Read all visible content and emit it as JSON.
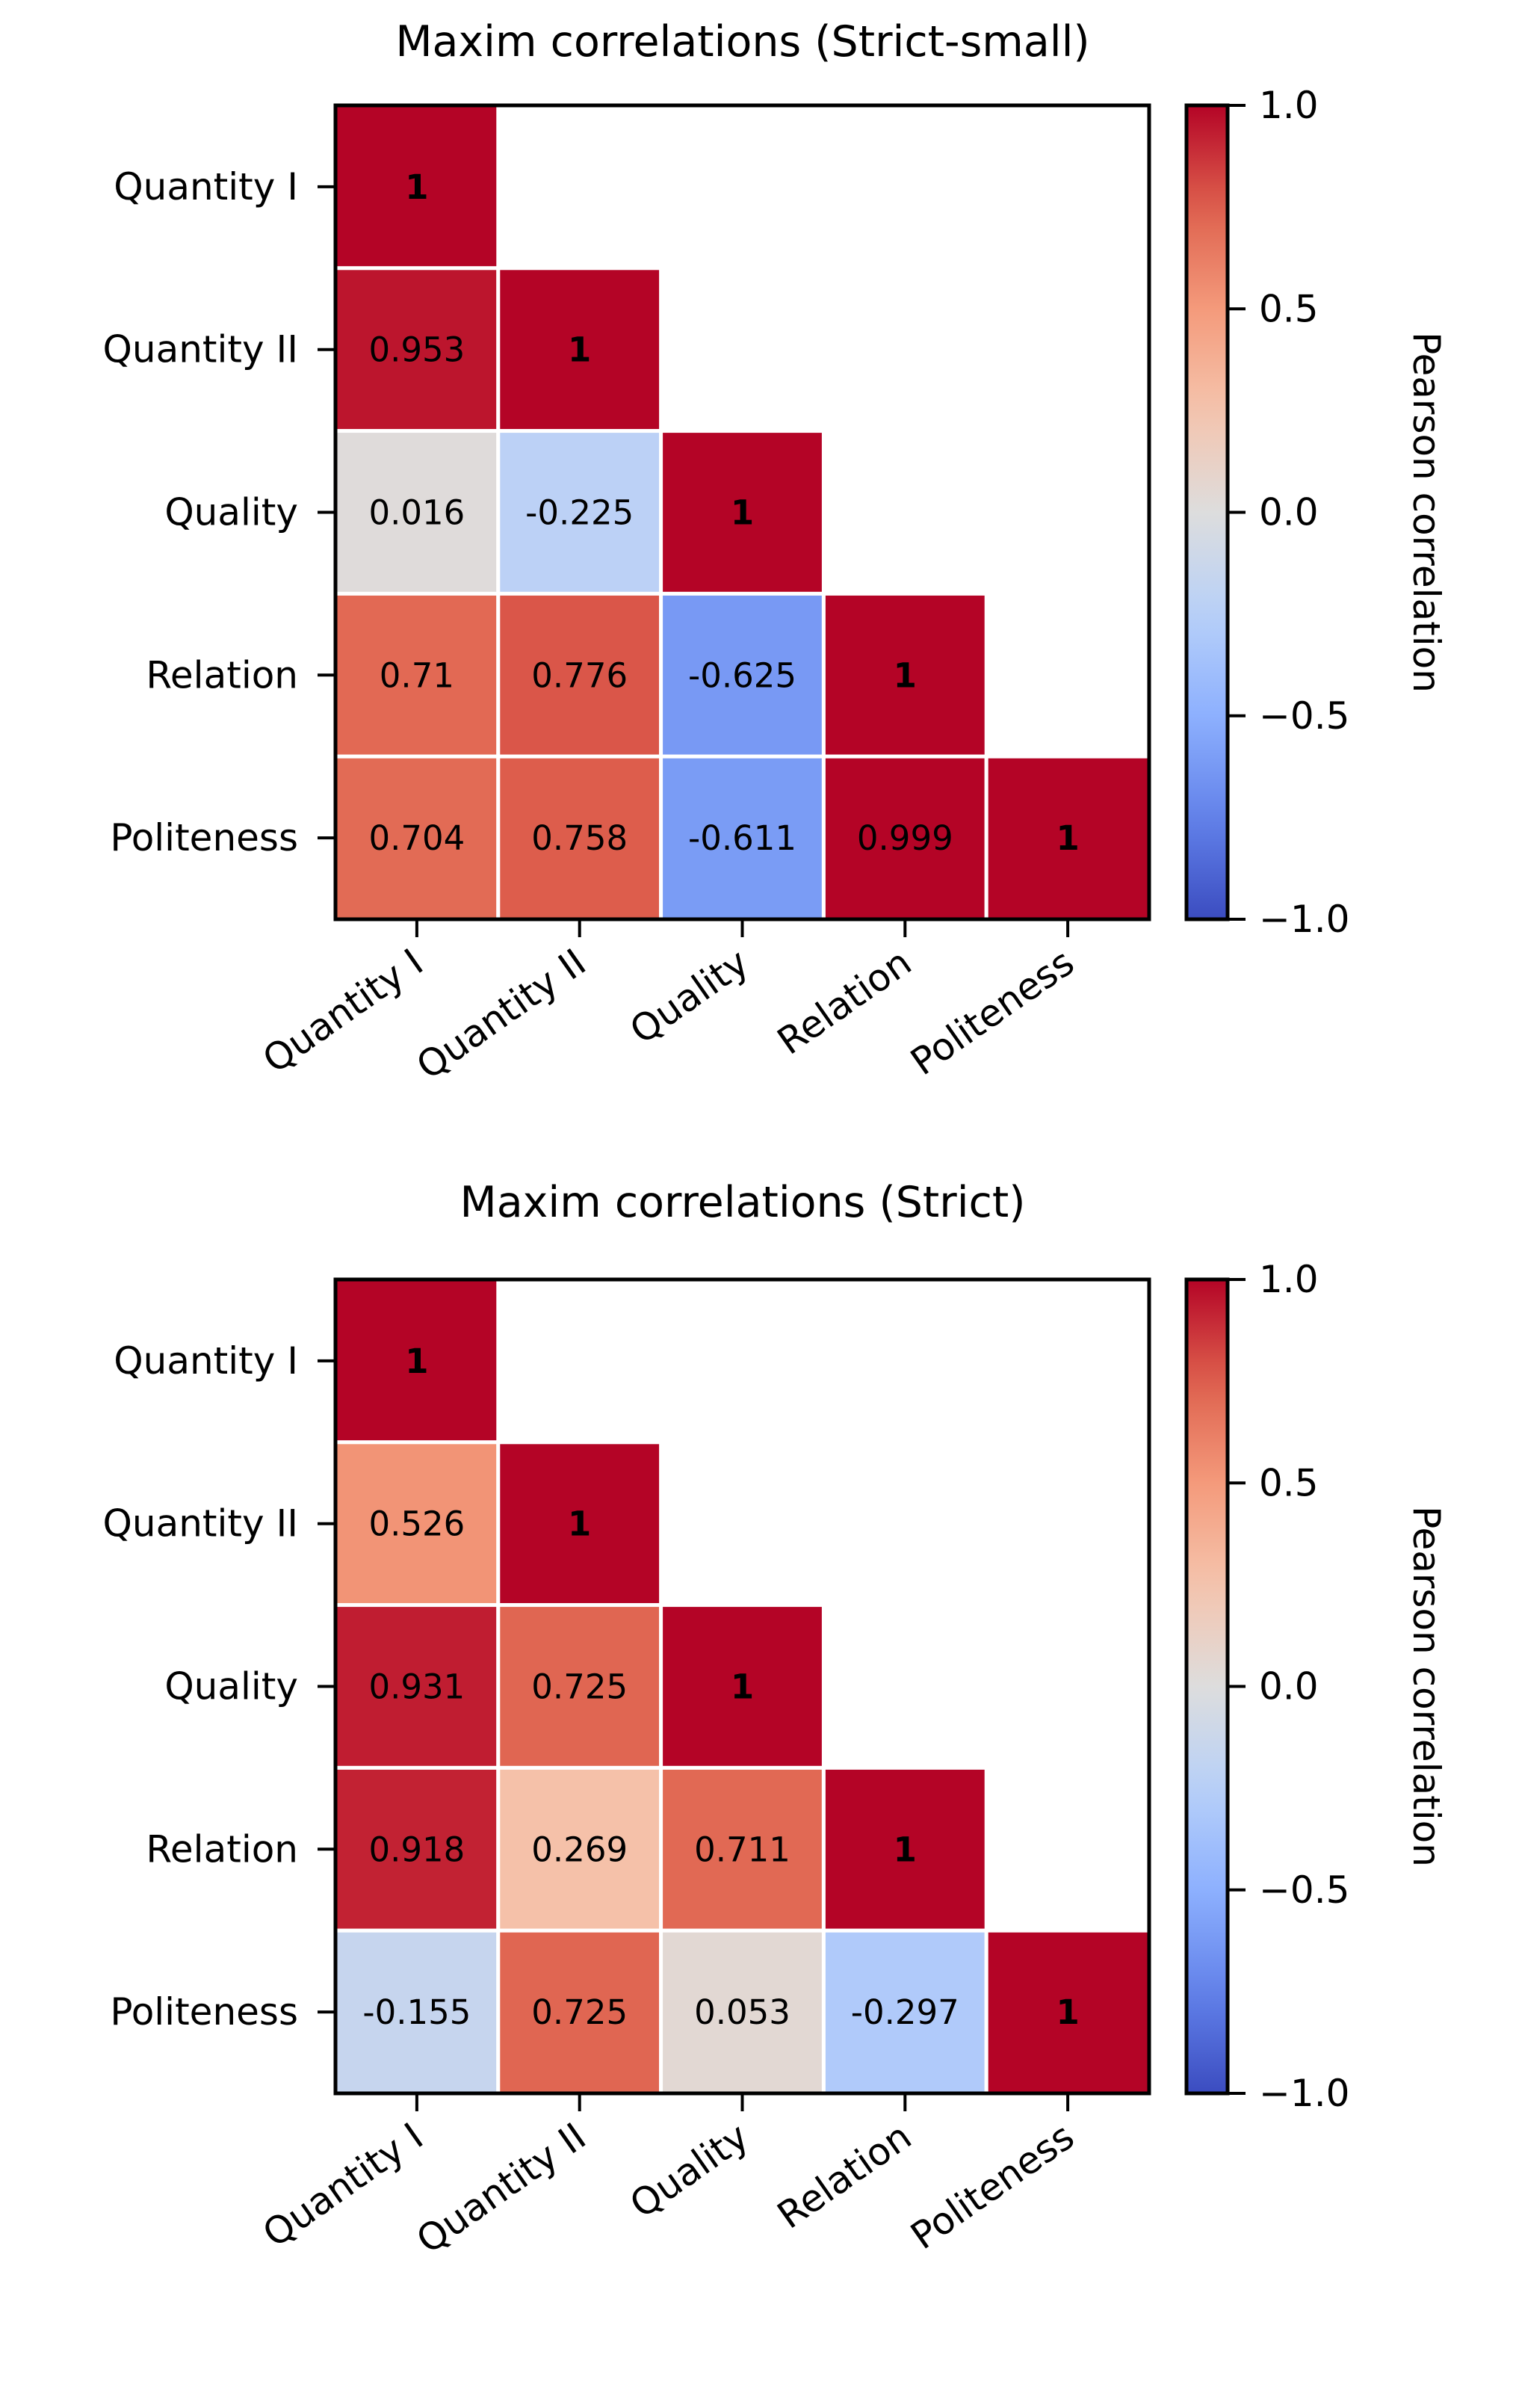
{
  "chart_data": [
    {
      "type": "heatmap",
      "title": "Maxim correlations (Strict-small)",
      "x_categories": [
        "Quantity I",
        "Quantity II",
        "Quality",
        "Relation",
        "Politeness"
      ],
      "y_categories": [
        "Quantity I",
        "Quantity II",
        "Quality",
        "Relation",
        "Politeness"
      ],
      "mask": "upper-triangle",
      "values": [
        [
          1,
          null,
          null,
          null,
          null
        ],
        [
          0.953,
          1,
          null,
          null,
          null
        ],
        [
          0.016,
          -0.225,
          1,
          null,
          null
        ],
        [
          0.71,
          0.776,
          -0.625,
          1,
          null
        ],
        [
          0.704,
          0.758,
          -0.611,
          0.999,
          1
        ]
      ],
      "cell_labels": [
        [
          "1",
          "",
          "",
          "",
          ""
        ],
        [
          "0.953",
          "1",
          "",
          "",
          ""
        ],
        [
          "0.016",
          "-0.225",
          "1",
          "",
          ""
        ],
        [
          "0.71",
          "0.776",
          "-0.625",
          "1",
          ""
        ],
        [
          "0.704",
          "0.758",
          "-0.611",
          "0.999",
          "1"
        ]
      ],
      "colormap": "coolwarm",
      "vmin": -1.0,
      "vmax": 1.0,
      "colorbar": {
        "label": "Pearson correlation",
        "ticks": [
          1.0,
          0.5,
          0.0,
          -0.5,
          -1.0
        ],
        "tick_labels": [
          "1.0",
          "0.5",
          "0.0",
          "−0.5",
          "−1.0"
        ],
        "placement": "right"
      }
    },
    {
      "type": "heatmap",
      "title": "Maxim correlations (Strict)",
      "x_categories": [
        "Quantity I",
        "Quantity II",
        "Quality",
        "Relation",
        "Politeness"
      ],
      "y_categories": [
        "Quantity I",
        "Quantity II",
        "Quality",
        "Relation",
        "Politeness"
      ],
      "mask": "upper-triangle",
      "values": [
        [
          1,
          null,
          null,
          null,
          null
        ],
        [
          0.526,
          1,
          null,
          null,
          null
        ],
        [
          0.931,
          0.725,
          1,
          null,
          null
        ],
        [
          0.918,
          0.269,
          0.711,
          1,
          null
        ],
        [
          -0.155,
          0.725,
          0.053,
          -0.297,
          1
        ]
      ],
      "cell_labels": [
        [
          "1",
          "",
          "",
          "",
          ""
        ],
        [
          "0.526",
          "1",
          "",
          "",
          ""
        ],
        [
          "0.931",
          "0.725",
          "1",
          "",
          ""
        ],
        [
          "0.918",
          "0.269",
          "0.711",
          "1",
          ""
        ],
        [
          "-0.155",
          "0.725",
          "0.053",
          "-0.297",
          "1"
        ]
      ],
      "colormap": "coolwarm",
      "vmin": -1.0,
      "vmax": 1.0,
      "colorbar": {
        "label": "Pearson correlation",
        "ticks": [
          1.0,
          0.5,
          0.0,
          -0.5,
          -1.0
        ],
        "tick_labels": [
          "1.0",
          "0.5",
          "0.0",
          "−0.5",
          "−1.0"
        ],
        "placement": "right"
      }
    }
  ]
}
